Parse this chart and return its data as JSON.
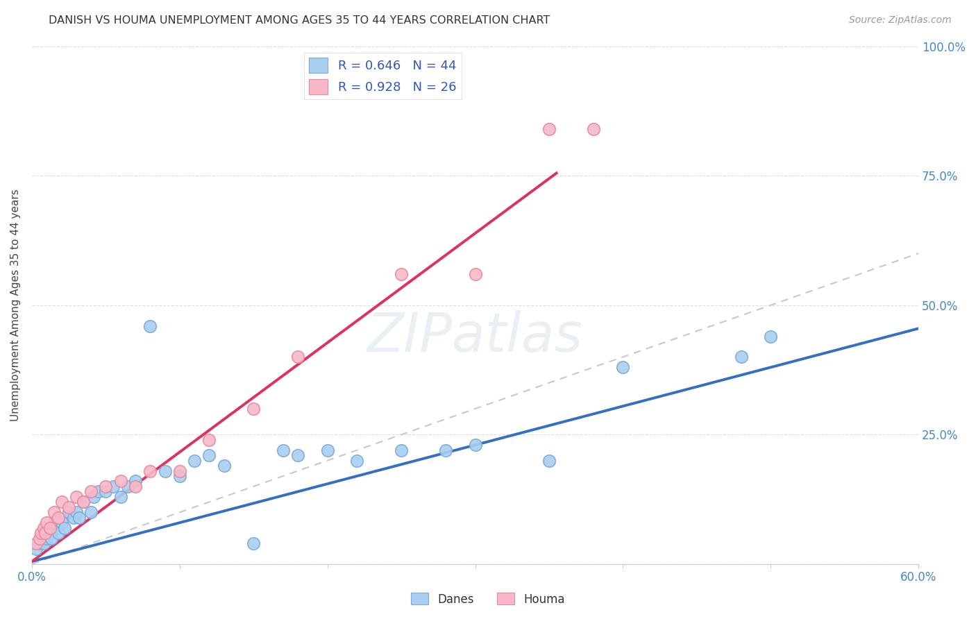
{
  "title": "DANISH VS HOUMA UNEMPLOYMENT AMONG AGES 35 TO 44 YEARS CORRELATION CHART",
  "source": "Source: ZipAtlas.com",
  "ylabel": "Unemployment Among Ages 35 to 44 years",
  "xlim": [
    0.0,
    0.6
  ],
  "ylim": [
    0.0,
    1.0
  ],
  "xticks": [
    0.0,
    0.1,
    0.2,
    0.3,
    0.4,
    0.5,
    0.6
  ],
  "xticklabels": [
    "0.0%",
    "",
    "",
    "",
    "",
    "",
    "60.0%"
  ],
  "yticks": [
    0.0,
    0.25,
    0.5,
    0.75,
    1.0
  ],
  "yticklabels": [
    "",
    "25.0%",
    "50.0%",
    "75.0%",
    "100.0%"
  ],
  "danes_R": 0.646,
  "danes_N": 44,
  "houma_R": 0.928,
  "houma_N": 26,
  "danes_color": "#A8CFF0",
  "danes_edge_color": "#7AAAD8",
  "houma_color": "#F8B8C8",
  "houma_edge_color": "#E888A0",
  "danes_line_color": "#3370C4",
  "houma_line_color": "#E03060",
  "ref_line_color": "#C8C8C8",
  "background_color": "#FFFFFF",
  "danes_x": [
    0.003,
    0.005,
    0.007,
    0.008,
    0.009,
    0.01,
    0.012,
    0.013,
    0.015,
    0.015,
    0.018,
    0.02,
    0.022,
    0.025,
    0.028,
    0.03,
    0.032,
    0.035,
    0.04,
    0.042,
    0.045,
    0.05,
    0.055,
    0.06,
    0.065,
    0.07,
    0.08,
    0.09,
    0.1,
    0.11,
    0.12,
    0.13,
    0.15,
    0.17,
    0.18,
    0.2,
    0.22,
    0.25,
    0.28,
    0.3,
    0.35,
    0.4,
    0.48,
    0.5
  ],
  "danes_y": [
    0.03,
    0.04,
    0.05,
    0.04,
    0.06,
    0.05,
    0.06,
    0.05,
    0.07,
    0.08,
    0.06,
    0.08,
    0.07,
    0.1,
    0.09,
    0.1,
    0.09,
    0.12,
    0.1,
    0.13,
    0.14,
    0.14,
    0.15,
    0.13,
    0.15,
    0.16,
    0.46,
    0.18,
    0.17,
    0.2,
    0.21,
    0.19,
    0.04,
    0.22,
    0.21,
    0.22,
    0.2,
    0.22,
    0.22,
    0.23,
    0.2,
    0.38,
    0.4,
    0.44
  ],
  "houma_x": [
    0.003,
    0.005,
    0.006,
    0.008,
    0.009,
    0.01,
    0.012,
    0.015,
    0.018,
    0.02,
    0.025,
    0.03,
    0.035,
    0.04,
    0.05,
    0.06,
    0.07,
    0.08,
    0.1,
    0.12,
    0.15,
    0.18,
    0.25,
    0.3,
    0.35,
    0.38
  ],
  "houma_y": [
    0.04,
    0.05,
    0.06,
    0.07,
    0.06,
    0.08,
    0.07,
    0.1,
    0.09,
    0.12,
    0.11,
    0.13,
    0.12,
    0.14,
    0.15,
    0.16,
    0.15,
    0.18,
    0.18,
    0.24,
    0.3,
    0.4,
    0.56,
    0.56,
    0.84,
    0.84
  ],
  "danes_trend_x": [
    0.0,
    0.6
  ],
  "danes_trend_y": [
    0.005,
    0.455
  ],
  "houma_trend_x": [
    0.0,
    0.355
  ],
  "houma_trend_y": [
    0.005,
    0.755
  ],
  "ref_line_x": [
    0.0,
    1.0
  ],
  "ref_line_y": [
    0.0,
    1.0
  ],
  "watermark": "ZIPatlas"
}
